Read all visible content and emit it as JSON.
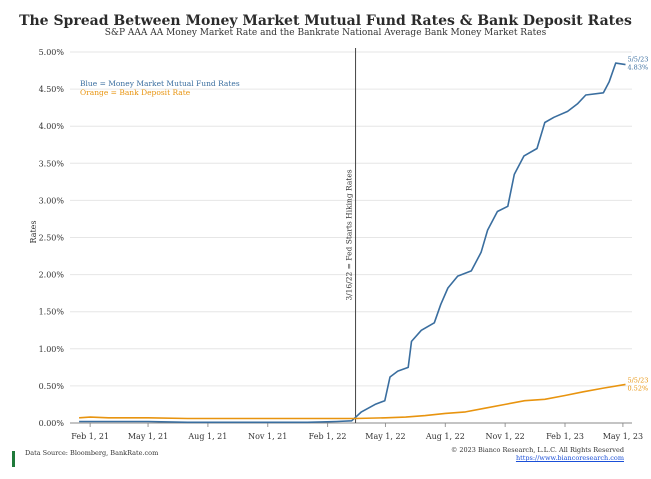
{
  "chart_data": {
    "type": "line",
    "title": "The Spread Between Money Market Mutual Fund Rates & Bank Deposit Rates",
    "subtitle": "S&P AAA AA Money Market Rate and the Bankrate National Average Bank Money Market Rates",
    "ylabel": "Rates",
    "xlabel": "",
    "x_ticks": [
      "Feb 1, 21",
      "May 1, 21",
      "Aug 1, 21",
      "Nov 1, 21",
      "Feb 1, 22",
      "May 1, 22",
      "Aug 1, 22",
      "Nov 1, 22",
      "Feb 1, 23",
      "May 1, 23"
    ],
    "y_ticks": [
      "0.00%",
      "0.50%",
      "1.00%",
      "1.50%",
      "2.00%",
      "2.50%",
      "3.00%",
      "3.50%",
      "4.00%",
      "4.50%",
      "5.00%"
    ],
    "ylim": [
      0,
      5
    ],
    "grid": true,
    "legend": [
      "Blue = Money Market Mutual Fund Rates",
      "Orange = Bank Deposit Rate"
    ],
    "legend_position": "top-left",
    "vline": {
      "date": "2022-03-16",
      "label": "3/16/22 = Fed Starts Hiking Rates"
    },
    "series": [
      {
        "name": "Blue = Money Market Mutual Fund Rates",
        "color": "#3a6e9f",
        "end_label_date": "5/5/23",
        "end_label_value": "4.83%",
        "points": [
          [
            "2021-01-15",
            0.02
          ],
          [
            "2021-03-01",
            0.02
          ],
          [
            "2021-05-01",
            0.02
          ],
          [
            "2021-07-01",
            0.01
          ],
          [
            "2021-09-01",
            0.01
          ],
          [
            "2021-11-01",
            0.01
          ],
          [
            "2022-01-01",
            0.01
          ],
          [
            "2022-02-15",
            0.02
          ],
          [
            "2022-03-10",
            0.03
          ],
          [
            "2022-03-25",
            0.15
          ],
          [
            "2022-04-15",
            0.25
          ],
          [
            "2022-04-30",
            0.3
          ],
          [
            "2022-05-08",
            0.62
          ],
          [
            "2022-05-20",
            0.7
          ],
          [
            "2022-06-05",
            0.75
          ],
          [
            "2022-06-10",
            1.1
          ],
          [
            "2022-06-25",
            1.25
          ],
          [
            "2022-07-15",
            1.35
          ],
          [
            "2022-07-25",
            1.6
          ],
          [
            "2022-08-05",
            1.82
          ],
          [
            "2022-08-20",
            1.98
          ],
          [
            "2022-09-10",
            2.05
          ],
          [
            "2022-09-25",
            2.3
          ],
          [
            "2022-10-05",
            2.6
          ],
          [
            "2022-10-20",
            2.85
          ],
          [
            "2022-11-05",
            2.92
          ],
          [
            "2022-11-15",
            3.35
          ],
          [
            "2022-11-30",
            3.6
          ],
          [
            "2022-12-20",
            3.7
          ],
          [
            "2023-01-01",
            4.05
          ],
          [
            "2023-01-15",
            4.12
          ],
          [
            "2023-02-05",
            4.2
          ],
          [
            "2023-02-20",
            4.3
          ],
          [
            "2023-03-05",
            4.42
          ],
          [
            "2023-04-01",
            4.45
          ],
          [
            "2023-04-10",
            4.6
          ],
          [
            "2023-04-20",
            4.85
          ],
          [
            "2023-05-05",
            4.83
          ]
        ]
      },
      {
        "name": "Orange = Bank Deposit Rate",
        "color": "#e8940f",
        "end_label_date": "5/5/23",
        "end_label_value": "0.52%",
        "points": [
          [
            "2021-01-15",
            0.07
          ],
          [
            "2021-02-01",
            0.08
          ],
          [
            "2021-03-01",
            0.07
          ],
          [
            "2021-05-01",
            0.07
          ],
          [
            "2021-07-01",
            0.06
          ],
          [
            "2021-09-01",
            0.06
          ],
          [
            "2021-11-01",
            0.06
          ],
          [
            "2022-01-01",
            0.06
          ],
          [
            "2022-03-15",
            0.06
          ],
          [
            "2022-05-01",
            0.07
          ],
          [
            "2022-06-01",
            0.08
          ],
          [
            "2022-07-01",
            0.1
          ],
          [
            "2022-08-01",
            0.13
          ],
          [
            "2022-09-01",
            0.15
          ],
          [
            "2022-10-01",
            0.2
          ],
          [
            "2022-11-01",
            0.25
          ],
          [
            "2022-12-01",
            0.3
          ],
          [
            "2023-01-01",
            0.32
          ],
          [
            "2023-02-01",
            0.37
          ],
          [
            "2023-03-01",
            0.42
          ],
          [
            "2023-04-01",
            0.47
          ],
          [
            "2023-05-05",
            0.52
          ]
        ]
      }
    ]
  },
  "footer": {
    "source": "Data Source: Bloomberg, BankRate.com",
    "copyright": "© 2023 Bianco Research, L.L.C. All Rights Reserved",
    "link": "https://www.biancoresearch.com"
  }
}
